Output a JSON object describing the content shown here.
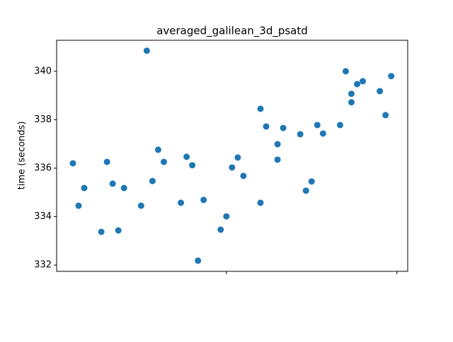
{
  "chart_data": {
    "type": "scatter",
    "title": "averaged_galilean_3d_psatd",
    "y_label": "time (seconds)",
    "x": [
      0,
      1,
      2,
      5,
      6,
      7,
      8,
      9,
      12,
      13,
      14,
      15,
      16,
      19,
      20,
      21,
      22,
      23,
      26,
      27,
      28,
      29,
      30,
      33,
      33,
      34,
      36,
      36,
      37,
      40,
      41,
      42,
      43,
      44,
      47,
      48,
      49,
      49,
      50,
      51,
      54,
      55,
      56
    ],
    "values": [
      336.2,
      334.45,
      335.18,
      333.37,
      336.26,
      335.36,
      333.43,
      335.18,
      334.45,
      340.85,
      335.47,
      336.76,
      336.26,
      334.57,
      336.47,
      336.12,
      332.18,
      334.69,
      333.46,
      334.01,
      336.03,
      336.44,
      335.68,
      338.45,
      334.57,
      337.72,
      336.99,
      336.35,
      337.66,
      337.4,
      335.07,
      335.45,
      337.78,
      337.43,
      337.78,
      340.0,
      339.07,
      338.72,
      339.47,
      339.59,
      339.18,
      338.19,
      339.8
    ],
    "color": "#1f77b4",
    "xlim": [
      -2.86,
      58.9
    ],
    "xticks": [
      27,
      57
    ],
    "ylim": [
      331.74,
      341.28
    ],
    "yticks": [
      332,
      334,
      336,
      338,
      340
    ]
  }
}
